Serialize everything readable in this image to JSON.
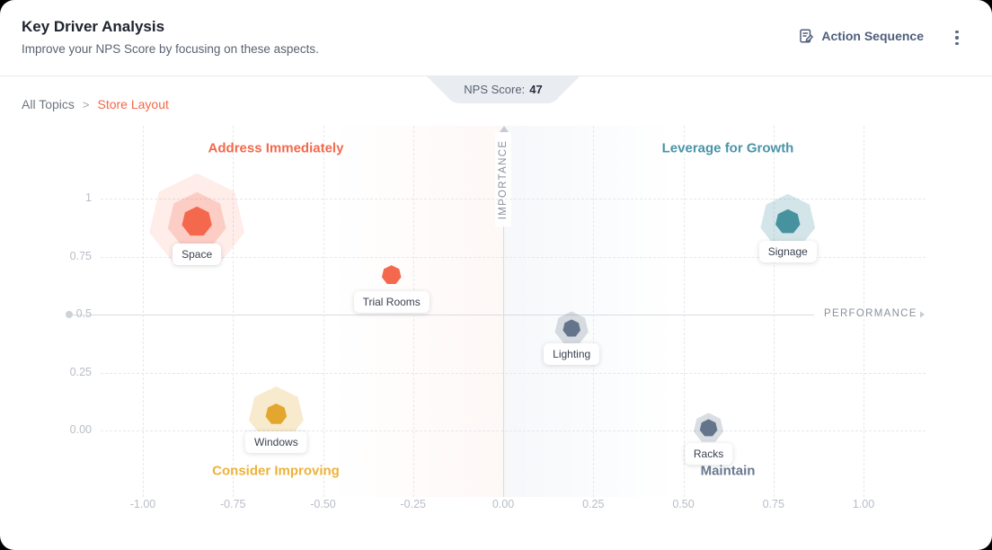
{
  "header": {
    "title": "Key Driver Analysis",
    "subtitle": "Improve your NPS Score by focusing on these aspects.",
    "action_button_label": "Action Sequence",
    "action_button_icon": "document-edit-icon",
    "menu_icon": "kebab-menu-icon"
  },
  "breadcrumb": {
    "root": "All Topics",
    "separator": ">",
    "current": "Store Layout"
  },
  "nps_badge": {
    "label": "NPS Score:",
    "value": "47"
  },
  "chart_data": {
    "type": "scatter",
    "title": "Key Driver Analysis quadrant chart",
    "xlabel": "PERFORMANCE",
    "ylabel": "IMPORTANCE",
    "x_range": [
      -1.0,
      1.0
    ],
    "y_range": [
      0.0,
      1.0
    ],
    "center": {
      "x": 0.0,
      "y": 0.5
    },
    "grid": "dashed",
    "x_ticks": [
      -1.0,
      -0.75,
      -0.5,
      -0.25,
      0.0,
      0.25,
      0.5,
      0.75,
      1.0
    ],
    "x_tick_labels": [
      "-1.00",
      "-0.75",
      "-0.50",
      "-0.25",
      "0.00",
      "0.25",
      "0.50",
      "0.75",
      "1.00"
    ],
    "y_ticks": [
      1.0,
      0.75,
      0.5,
      0.25,
      0.0
    ],
    "y_tick_labels": [
      "1",
      "0.75",
      "0.5",
      "0.25",
      "0.00"
    ],
    "quadrants": [
      {
        "label": "Address Immediately",
        "position": "top-left",
        "color": "#F2694D"
      },
      {
        "label": "Leverage for Growth",
        "position": "top-right",
        "color": "#4A93A8"
      },
      {
        "label": "Consider Improving",
        "position": "bottom-left",
        "color": "#EDB239"
      },
      {
        "label": "Maintain",
        "position": "bottom-right",
        "color": "#6A7891"
      }
    ],
    "points": [
      {
        "label": "Space",
        "x": -0.85,
        "y": 0.9,
        "color": "#F4694E",
        "halo_rgb": "244,105,78",
        "size": 34,
        "halos": [
          66,
          108
        ]
      },
      {
        "label": "Trial Rooms",
        "x": -0.31,
        "y": 0.67,
        "color": "#F4694E",
        "halo_rgb": "244,105,78",
        "size": 22,
        "halos": []
      },
      {
        "label": "Windows",
        "x": -0.63,
        "y": 0.07,
        "color": "#E3A72F",
        "halo_rgb": "227,167,47",
        "size": 24,
        "halos": [
          62
        ]
      },
      {
        "label": "Lighting",
        "x": 0.19,
        "y": 0.44,
        "color": "#64748B",
        "halo_rgb": "100,116,139",
        "size": 20,
        "halos": [
          38
        ]
      },
      {
        "label": "Racks",
        "x": 0.57,
        "y": 0.01,
        "color": "#64748B",
        "halo_rgb": "100,116,139",
        "size": 20,
        "halos": [
          34
        ]
      },
      {
        "label": "Signage",
        "x": 0.79,
        "y": 0.9,
        "color": "#46929E",
        "halo_rgb": "70,146,158",
        "size": 28,
        "halos": [
          62
        ]
      }
    ]
  }
}
